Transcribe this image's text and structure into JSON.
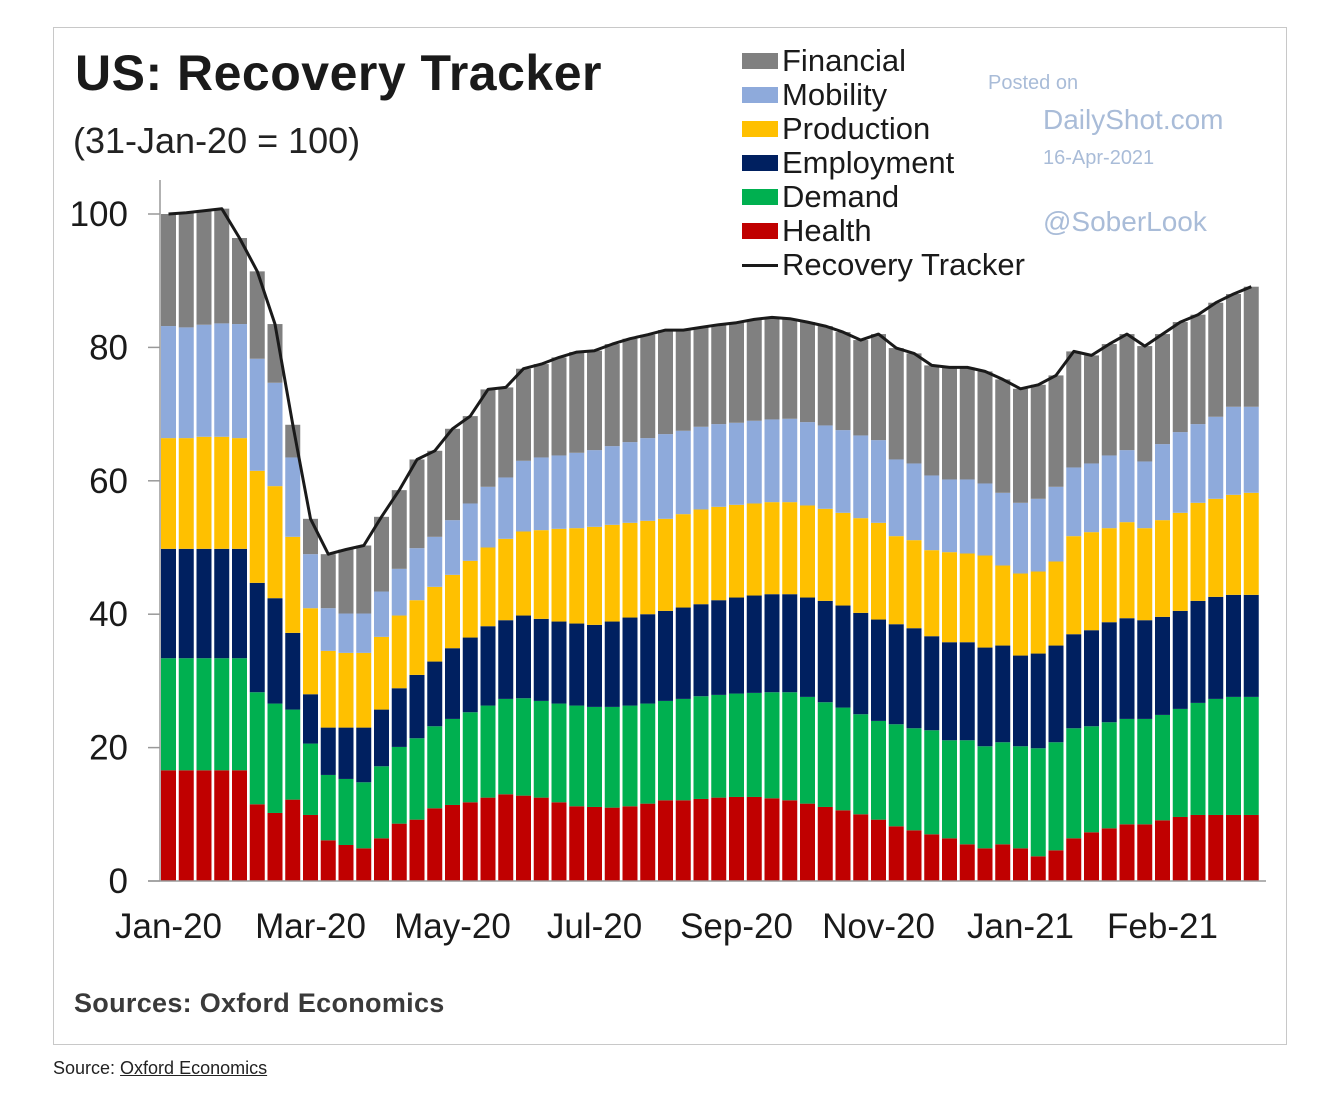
{
  "chart_data": {
    "type": "bar",
    "stacked": true,
    "title": "US: Recovery Tracker",
    "subtitle": "(31-Jan-20 = 100)",
    "xtick_labels": [
      "Jan-20",
      "Mar-20",
      "May-20",
      "Jul-20",
      "Sep-20",
      "Nov-20",
      "Jan-21",
      "Feb-21"
    ],
    "ylim": [
      0,
      100
    ],
    "yticks": [
      0,
      20,
      40,
      60,
      80,
      100
    ],
    "grid": false,
    "legend_position": "top-right",
    "series": [
      {
        "name": "Health",
        "color": "#c00000",
        "values": [
          16.6,
          16.6,
          16.6,
          16.6,
          16.6,
          11.5,
          10.2,
          12.2,
          9.9,
          6.1,
          5.4,
          4.9,
          6.4,
          8.6,
          9.2,
          10.9,
          11.4,
          11.8,
          12.5,
          13.0,
          12.8,
          12.5,
          11.8,
          11.2,
          11.1,
          11.0,
          11.2,
          11.6,
          12.1,
          12.1,
          12.3,
          12.5,
          12.6,
          12.6,
          12.4,
          12.1,
          11.6,
          11.1,
          10.6,
          10.0,
          9.2,
          8.2,
          7.6,
          7.0,
          6.4,
          5.5,
          4.9,
          5.5,
          4.9,
          3.7,
          4.6,
          6.4,
          7.3,
          7.9,
          8.5,
          8.5,
          9.1,
          9.6,
          9.9,
          9.9,
          9.9,
          9.9
        ]
      },
      {
        "name": "Demand",
        "color": "#00b050",
        "values": [
          16.8,
          16.8,
          16.8,
          16.8,
          16.8,
          16.8,
          16.4,
          13.5,
          10.7,
          9.8,
          9.9,
          9.9,
          10.8,
          11.5,
          12.2,
          12.3,
          12.9,
          13.5,
          13.8,
          14.3,
          14.6,
          14.5,
          14.8,
          15.1,
          15.0,
          15.1,
          15.1,
          15.0,
          14.9,
          15.2,
          15.4,
          15.4,
          15.5,
          15.6,
          15.9,
          16.2,
          16.0,
          15.7,
          15.4,
          15.0,
          14.8,
          15.3,
          15.3,
          15.6,
          14.7,
          15.6,
          15.3,
          15.3,
          15.3,
          16.2,
          16.2,
          16.5,
          15.9,
          15.9,
          15.8,
          15.8,
          15.8,
          16.2,
          16.8,
          17.4,
          17.7,
          17.7
        ]
      },
      {
        "name": "Employment",
        "color": "#002060",
        "values": [
          16.4,
          16.4,
          16.4,
          16.4,
          16.4,
          16.4,
          15.8,
          11.5,
          7.4,
          7.1,
          7.7,
          8.2,
          8.5,
          8.8,
          9.5,
          9.7,
          10.6,
          11.2,
          11.9,
          11.8,
          12.4,
          12.3,
          12.3,
          12.3,
          12.3,
          12.8,
          13.2,
          13.4,
          13.5,
          13.7,
          13.8,
          14.2,
          14.4,
          14.6,
          14.7,
          14.7,
          14.9,
          15.2,
          15.3,
          15.2,
          15.2,
          15.0,
          15.0,
          14.1,
          14.7,
          14.7,
          14.8,
          14.5,
          13.6,
          14.2,
          14.5,
          14.1,
          14.4,
          15.0,
          15.1,
          14.8,
          14.7,
          14.7,
          15.3,
          15.3,
          15.3,
          15.3
        ]
      },
      {
        "name": "Production",
        "color": "#ffc000",
        "values": [
          16.6,
          16.6,
          16.8,
          16.8,
          16.6,
          16.8,
          16.8,
          14.4,
          12.9,
          11.5,
          11.2,
          11.2,
          10.9,
          10.9,
          11.2,
          11.2,
          11.0,
          11.5,
          11.8,
          12.2,
          12.6,
          13.3,
          13.9,
          14.3,
          14.7,
          14.5,
          14.2,
          14.0,
          13.8,
          14.0,
          14.2,
          14.0,
          13.9,
          13.8,
          13.8,
          13.8,
          13.8,
          13.8,
          13.9,
          14.2,
          14.5,
          13.2,
          13.2,
          12.9,
          13.5,
          13.3,
          13.8,
          12.0,
          12.3,
          12.3,
          12.6,
          14.7,
          14.7,
          14.1,
          14.4,
          13.8,
          14.5,
          14.7,
          14.7,
          14.7,
          15.0,
          15.3
        ]
      },
      {
        "name": "Mobility",
        "color": "#8eaadb",
        "values": [
          16.8,
          16.6,
          16.8,
          17.0,
          17.1,
          16.8,
          15.5,
          11.9,
          8.1,
          6.4,
          5.9,
          5.9,
          6.8,
          7.0,
          7.8,
          7.5,
          8.2,
          8.6,
          9.1,
          9.2,
          10.6,
          10.9,
          11.0,
          11.3,
          11.5,
          11.8,
          12.1,
          12.4,
          12.7,
          12.5,
          12.4,
          12.4,
          12.3,
          12.4,
          12.4,
          12.5,
          12.5,
          12.5,
          12.4,
          12.4,
          12.4,
          11.5,
          11.5,
          11.2,
          10.9,
          11.1,
          10.8,
          10.9,
          10.6,
          10.9,
          11.2,
          10.3,
          10.3,
          10.9,
          10.8,
          10.0,
          11.4,
          12.1,
          11.8,
          12.3,
          13.2,
          12.9
        ]
      },
      {
        "name": "Financial",
        "color": "#808080",
        "values": [
          16.8,
          17.2,
          17.1,
          17.2,
          12.9,
          13.1,
          8.8,
          4.9,
          5.3,
          8.1,
          9.6,
          10.2,
          11.2,
          11.8,
          13.3,
          12.9,
          13.7,
          13.1,
          14.6,
          13.5,
          13.8,
          14.0,
          14.7,
          15.1,
          14.9,
          15.3,
          15.5,
          15.5,
          15.6,
          15.1,
          14.9,
          14.9,
          15.0,
          15.2,
          15.3,
          15.0,
          15.0,
          14.9,
          14.7,
          14.3,
          15.9,
          16.7,
          16.5,
          16.5,
          16.8,
          16.8,
          16.8,
          17.0,
          17.1,
          17.1,
          16.7,
          17.4,
          16.2,
          16.7,
          17.4,
          17.3,
          16.5,
          16.5,
          16.4,
          17.1,
          16.9,
          18.0
        ]
      }
    ],
    "line": {
      "name": "Recovery Tracker",
      "color": "#1a1a1a",
      "values": [
        100,
        100.2,
        100.5,
        100.8,
        96.4,
        91.4,
        83.5,
        68.4,
        54.3,
        49.0,
        49.7,
        50.3,
        54.6,
        58.6,
        63.2,
        64.5,
        67.8,
        69.7,
        73.7,
        74.0,
        76.8,
        77.5,
        78.5,
        79.3,
        79.5,
        80.5,
        81.3,
        81.9,
        82.6,
        82.6,
        83.0,
        83.4,
        83.7,
        84.2,
        84.5,
        84.3,
        83.8,
        83.2,
        82.3,
        81.1,
        82.0,
        79.9,
        79.1,
        77.3,
        77.0,
        77.0,
        76.4,
        75.2,
        73.8,
        74.4,
        75.8,
        79.4,
        78.8,
        80.5,
        82.0,
        80.2,
        82.0,
        83.8,
        84.9,
        86.7,
        88.0,
        89.1
      ]
    }
  },
  "legend": [
    "Financial",
    "Mobility",
    "Production",
    "Employment",
    "Demand",
    "Health",
    "Recovery Tracker"
  ],
  "watermark": {
    "posted_on": "Posted on",
    "site": "DailyShot.com",
    "date": "16-Apr-2021",
    "handle": "@SoberLook"
  },
  "sources_note": "Sources: Oxford Economics",
  "caption": {
    "prefix": "Source: ",
    "link": "Oxford Economics"
  }
}
